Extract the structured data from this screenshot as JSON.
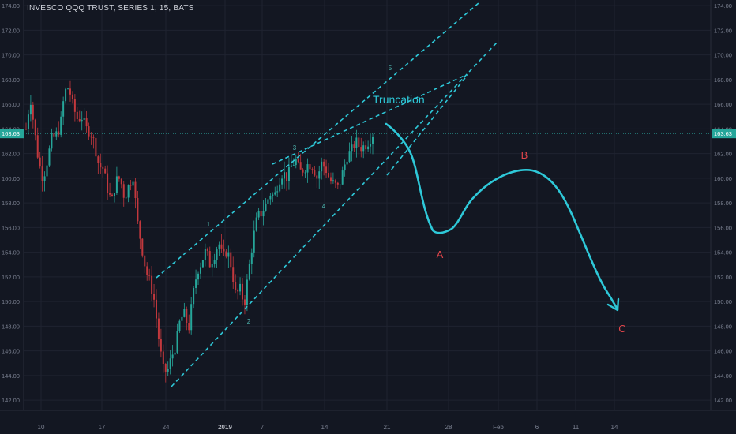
{
  "header": {
    "title": "INVESCO QQQ TRUST, SERIES 1, 15, BATS"
  },
  "price_badge": {
    "value": "163.63"
  },
  "colors": {
    "background": "#131722",
    "grid": "#1f2330",
    "axis_text": "#7b8191",
    "bull": "#26a69a",
    "bear": "#c2383d",
    "wave_lines": "#2ec8d8",
    "abc_labels": "#e0454a",
    "price_line": "#2aa198"
  },
  "chart_data": {
    "type": "candlestick",
    "title": "INVESCO QQQ TRUST, SERIES 1, 15, BATS",
    "y_axis": {
      "ylim": [
        141.5,
        174.2
      ],
      "ticks": [
        "142.00",
        "144.00",
        "146.00",
        "148.00",
        "150.00",
        "152.00",
        "154.00",
        "156.00",
        "158.00",
        "160.00",
        "162.00",
        "164.00",
        "166.00",
        "168.00",
        "170.00",
        "172.00",
        "174.00"
      ],
      "position": "both-sides"
    },
    "x_axis": {
      "ticks": [
        "10",
        "17",
        "24",
        "2019",
        "7",
        "14",
        "21",
        "28",
        "Feb",
        "6",
        "11",
        "14"
      ]
    },
    "last_price": 163.63,
    "price_path": [
      [
        "Dec 7",
        164.0
      ],
      [
        "Dec 7.5",
        166.6
      ],
      [
        "Dec 8",
        163.8
      ],
      [
        "Dec 9",
        161.2
      ],
      [
        "Dec 9.6",
        160.0
      ],
      [
        "Dec 10",
        161.5
      ],
      [
        "Dec 10.4",
        163.2
      ],
      [
        "Dec 11",
        163.5
      ],
      [
        "Dec 11.5",
        164.2
      ],
      [
        "Dec 12",
        167.0
      ],
      [
        "Dec 12.5",
        167.4
      ],
      [
        "Dec 13",
        165.8
      ],
      [
        "Dec 13.5",
        164.8
      ],
      [
        "Dec 14",
        165.0
      ],
      [
        "Dec 15",
        164.0
      ],
      [
        "Dec 15.5",
        163.8
      ],
      [
        "Dec 16",
        162.8
      ],
      [
        "Dec 16.5",
        161.0
      ],
      [
        "Dec 17",
        160.8
      ],
      [
        "Dec 17.5",
        159.2
      ],
      [
        "Dec 18",
        158.0
      ],
      [
        "Dec 18.5",
        159.8
      ],
      [
        "Dec 19",
        160.0
      ],
      [
        "Dec 19.5",
        158.4
      ],
      [
        "Dec 20",
        159.4
      ],
      [
        "Dec 20.5",
        160.2
      ],
      [
        "Dec 21",
        156.5
      ],
      [
        "Dec 21.5",
        154.5
      ],
      [
        "Dec 22",
        152.5
      ],
      [
        "Dec 22.5",
        151.5
      ],
      [
        "Dec 23",
        150.0
      ],
      [
        "Dec 23.5",
        147.0
      ],
      [
        "Dec 24",
        144.5
      ],
      [
        "Dec 24.5",
        144.3
      ],
      [
        "Dec 25",
        145.5
      ],
      [
        "Dec 25.5",
        146.5
      ],
      [
        "Dec 26",
        148.5
      ],
      [
        "Dec 27",
        149.0
      ],
      [
        "Dec 27.5",
        147.8
      ],
      [
        "Dec 28",
        150.5
      ],
      [
        "Dec 28.5",
        152.5
      ],
      [
        "Dec 29",
        153.2
      ],
      [
        "Dec 30",
        154.2
      ],
      [
        "Dec 30.5",
        153.0
      ],
      [
        "Dec 31",
        153.8
      ],
      [
        "Jan 1",
        154.8
      ],
      [
        "Jan 1.5",
        153.5
      ],
      [
        "Jan 2",
        154.2
      ],
      [
        "Jan 2.5",
        152.8
      ],
      [
        "Jan 3",
        150.5
      ],
      [
        "Jan 3.5",
        151.0
      ],
      [
        "Jan 4",
        149.8
      ],
      [
        "Jan 4.5",
        152.5
      ],
      [
        "Jan 5",
        155.0
      ],
      [
        "Jan 5.5",
        156.8
      ],
      [
        "Jan 6",
        157.2
      ],
      [
        "Jan 6.5",
        157.8
      ],
      [
        "Jan 7",
        158.8
      ],
      [
        "Jan 7.5",
        158.5
      ],
      [
        "Jan 8",
        159.8
      ],
      [
        "Jan 8.5",
        160.5
      ],
      [
        "Jan 9",
        160.0
      ],
      [
        "Jan 9.5",
        161.0
      ],
      [
        "Jan 10",
        161.5
      ],
      [
        "Jan 10.5",
        160.5
      ],
      [
        "Jan 11",
        160.8
      ],
      [
        "Jan 11.5",
        161.2
      ],
      [
        "Jan 12",
        161.0
      ],
      [
        "Jan 12.5",
        160.0
      ],
      [
        "Jan 13",
        161.2
      ],
      [
        "Jan 13.5",
        160.8
      ],
      [
        "Jan 14",
        159.8
      ],
      [
        "Jan 14.5",
        159.5
      ],
      [
        "Jan 15",
        159.2
      ],
      [
        "Jan 15.5",
        160.5
      ],
      [
        "Jan 16",
        161.8
      ],
      [
        "Jan 16.5",
        162.2
      ],
      [
        "Jan 17",
        163.0
      ],
      [
        "Jan 17.5",
        162.5
      ],
      [
        "Jan 18",
        162.6
      ],
      [
        "Jan 18.5",
        163.0
      ],
      [
        "Jan 19",
        163.63
      ]
    ],
    "annotations": {
      "wave_labels": [
        "1",
        "2",
        "3",
        "4",
        "5"
      ],
      "truncation_label": "Truncation",
      "abc_labels": [
        "A",
        "B",
        "C"
      ]
    }
  }
}
